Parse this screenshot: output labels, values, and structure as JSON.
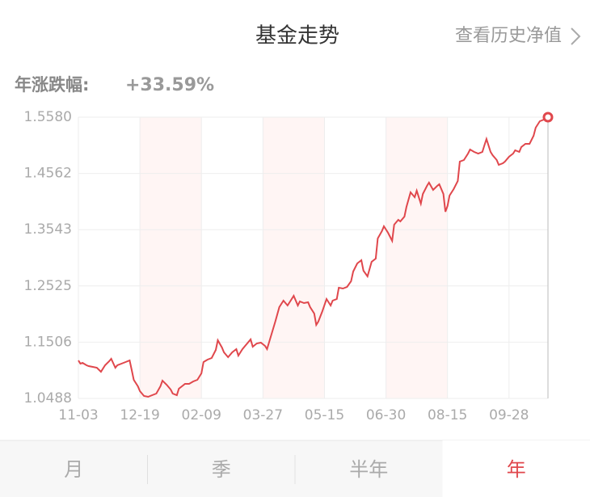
{
  "header": {
    "title": "基金走势",
    "link": "查看历史净值"
  },
  "summary": {
    "label": "年涨跌幅:",
    "value": "+33.59%"
  },
  "chart_data": {
    "type": "line",
    "x": [
      0,
      1,
      2,
      4,
      5,
      7,
      9,
      11,
      13,
      15,
      16,
      18,
      19,
      21,
      23,
      25,
      26,
      27,
      29,
      30,
      32,
      34,
      36,
      38,
      40,
      41,
      43,
      45,
      46,
      48,
      49,
      51,
      52,
      54,
      56,
      58,
      60,
      61,
      63,
      65,
      67,
      68,
      70,
      71,
      73,
      75,
      77,
      78,
      80,
      82,
      84,
      85,
      87,
      89,
      91,
      92,
      94,
      96,
      98,
      100,
      102,
      104,
      105,
      107,
      108,
      110,
      112,
      113,
      115,
      116,
      117,
      119,
      121,
      123,
      124,
      126,
      127,
      129,
      131,
      133,
      134,
      136,
      138,
      139,
      141,
      143,
      145,
      146,
      148,
      149,
      151,
      153,
      154,
      156,
      157,
      159,
      160,
      162,
      164,
      165,
      167,
      168,
      170,
      171,
      173,
      175,
      176,
      178,
      179,
      180,
      181,
      183,
      185,
      186,
      188,
      190,
      191,
      193,
      195,
      197,
      198,
      199,
      201,
      202,
      204,
      205,
      207,
      208,
      210,
      212,
      213,
      215,
      216,
      218,
      220,
      222,
      223,
      225,
      227,
      229
    ],
    "series": [
      {
        "color": "#e0474c",
        "values": [
          1.1176,
          1.1117,
          1.1132,
          1.1088,
          1.1073,
          1.1059,
          1.1044,
          1.0971,
          1.1088,
          1.1161,
          1.1205,
          1.1044,
          1.1088,
          1.1117,
          1.1146,
          1.1176,
          1.1,
          1.0825,
          1.0707,
          1.062,
          1.0532,
          1.0517,
          1.0547,
          1.0576,
          1.0707,
          1.081,
          1.0737,
          1.0649,
          1.0576,
          1.0547,
          1.0664,
          1.0722,
          1.0751,
          1.0751,
          1.0795,
          1.0825,
          1.0942,
          1.1146,
          1.119,
          1.122,
          1.1366,
          1.1542,
          1.141,
          1.1322,
          1.1234,
          1.1322,
          1.1381,
          1.1264,
          1.1381,
          1.1468,
          1.1556,
          1.1424,
          1.1483,
          1.1498,
          1.1439,
          1.1381,
          1.1629,
          1.1878,
          1.2141,
          1.2258,
          1.2171,
          1.2288,
          1.2346,
          1.2171,
          1.2244,
          1.2215,
          1.2229,
          1.2141,
          1.2024,
          1.182,
          1.1878,
          1.2068,
          1.2288,
          1.2171,
          1.2258,
          1.2288,
          1.2493,
          1.2478,
          1.2507,
          1.261,
          1.2785,
          1.2932,
          1.299,
          1.28,
          1.2697,
          1.2961,
          1.3019,
          1.3385,
          1.3517,
          1.3605,
          1.3488,
          1.3341,
          1.3634,
          1.3722,
          1.3692,
          1.378,
          1.3956,
          1.4219,
          1.4131,
          1.4248,
          1.4014,
          1.419,
          1.4336,
          1.4395,
          1.4263,
          1.4336,
          1.4365,
          1.419,
          1.3868,
          1.397,
          1.4161,
          1.4278,
          1.4424,
          1.4775,
          1.4804,
          1.4921,
          1.4995,
          1.4951,
          1.4921,
          1.4951,
          1.5068,
          1.5185,
          1.4951,
          1.4892,
          1.4804,
          1.4717,
          1.4746,
          1.4775,
          1.4863,
          1.4921,
          1.498,
          1.4951,
          1.5039,
          1.5097,
          1.5097,
          1.5243,
          1.539,
          1.5507,
          1.5536,
          1.558
        ]
      }
    ],
    "xlim": [
      0,
      229
    ],
    "xticks": [
      {
        "value": 0,
        "label": "11-03"
      },
      {
        "value": 30,
        "label": "12-19"
      },
      {
        "value": 60,
        "label": "02-09"
      },
      {
        "value": 90,
        "label": "03-27"
      },
      {
        "value": 120,
        "label": "05-15"
      },
      {
        "value": 150,
        "label": "06-30"
      },
      {
        "value": 180,
        "label": "08-15"
      },
      {
        "value": 210,
        "label": "09-28"
      }
    ],
    "ylim": [
      1.0488,
      1.558
    ],
    "yticks": [
      {
        "value": 1.0488,
        "label": "1.0488"
      },
      {
        "value": 1.1506,
        "label": "1.1506"
      },
      {
        "value": 1.2525,
        "label": "1.2525"
      },
      {
        "value": 1.3543,
        "label": "1.3543"
      },
      {
        "value": 1.4562,
        "label": "1.4562"
      },
      {
        "value": 1.558,
        "label": "1.5580"
      }
    ],
    "grid": true
  },
  "tabs": {
    "items": [
      "月",
      "季",
      "半年",
      "年"
    ],
    "active": 3
  }
}
